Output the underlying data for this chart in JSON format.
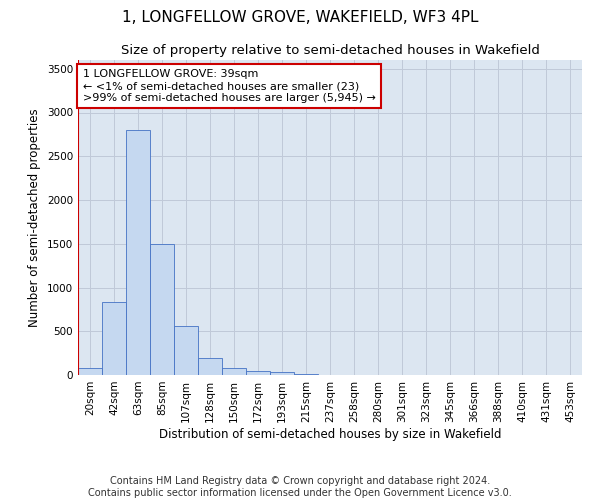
{
  "title": "1, LONGFELLOW GROVE, WAKEFIELD, WF3 4PL",
  "subtitle": "Size of property relative to semi-detached houses in Wakefield",
  "xlabel": "Distribution of semi-detached houses by size in Wakefield",
  "ylabel": "Number of semi-detached properties",
  "categories": [
    "20sqm",
    "42sqm",
    "63sqm",
    "85sqm",
    "107sqm",
    "128sqm",
    "150sqm",
    "172sqm",
    "193sqm",
    "215sqm",
    "237sqm",
    "258sqm",
    "280sqm",
    "301sqm",
    "323sqm",
    "345sqm",
    "366sqm",
    "388sqm",
    "410sqm",
    "431sqm",
    "453sqm"
  ],
  "values": [
    80,
    830,
    2800,
    1500,
    560,
    200,
    80,
    50,
    30,
    15,
    5,
    3,
    2,
    1,
    0,
    0,
    0,
    0,
    0,
    0,
    0
  ],
  "bar_color": "#c5d8f0",
  "bar_edge_color": "#4472c4",
  "highlight_line_color": "#cc0000",
  "annotation_text": "1 LONGFELLOW GROVE: 39sqm\n← <1% of semi-detached houses are smaller (23)\n>99% of semi-detached houses are larger (5,945) →",
  "annotation_box_color": "#ffffff",
  "annotation_box_edge": "#cc0000",
  "ylim": [
    0,
    3600
  ],
  "yticks": [
    0,
    500,
    1000,
    1500,
    2000,
    2500,
    3000,
    3500
  ],
  "grid_color": "#c0c9d8",
  "background_color": "#dce6f1",
  "footer_line1": "Contains HM Land Registry data © Crown copyright and database right 2024.",
  "footer_line2": "Contains public sector information licensed under the Open Government Licence v3.0.",
  "title_fontsize": 11,
  "subtitle_fontsize": 9.5,
  "axis_label_fontsize": 8.5,
  "tick_fontsize": 7.5,
  "annotation_fontsize": 8,
  "footer_fontsize": 7
}
